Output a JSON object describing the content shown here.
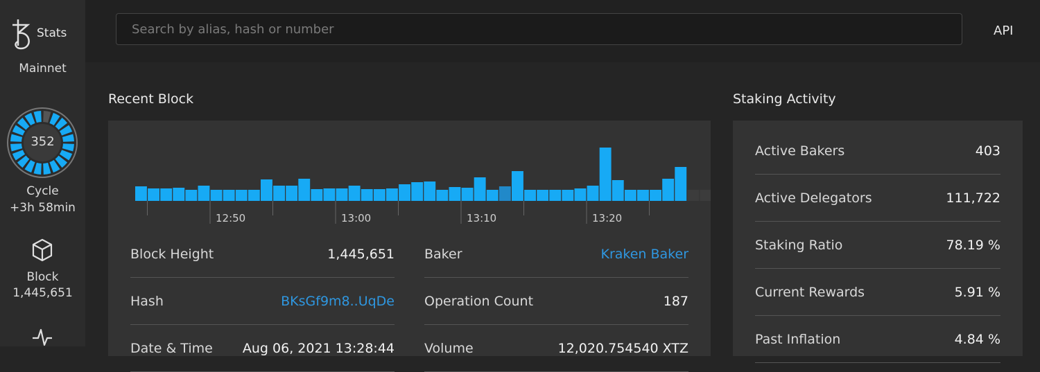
{
  "sidebar": {
    "brand": "Stats",
    "network": "Mainnet",
    "cycle_number": "352",
    "cycle_label": "Cycle",
    "cycle_remaining": "+3h 58min",
    "block_label": "Block",
    "block_height": "1,445,651"
  },
  "header": {
    "search_placeholder": "Search by alias, hash or number",
    "api_link": "API"
  },
  "recent_block": {
    "title": "Recent Block",
    "chart": {
      "type": "bar",
      "values": [
        21,
        18,
        18,
        19,
        16,
        22,
        16,
        16,
        16,
        16,
        31,
        22,
        22,
        32,
        17,
        18,
        18,
        22,
        17,
        17,
        18,
        24,
        27,
        28,
        16,
        20,
        19,
        34,
        16,
        21,
        43,
        16,
        16,
        16,
        16,
        18,
        22,
        77,
        30,
        16,
        16,
        16,
        32,
        49,
        16,
        16
      ],
      "colors": [
        "#17aaf5",
        "#17aaf5",
        "#17aaf5",
        "#17aaf5",
        "#17aaf5",
        "#17aaf5",
        "#17aaf5",
        "#17aaf5",
        "#17aaf5",
        "#17aaf5",
        "#17aaf5",
        "#17aaf5",
        "#17aaf5",
        "#17aaf5",
        "#17aaf5",
        "#17aaf5",
        "#17aaf5",
        "#17aaf5",
        "#17aaf5",
        "#17aaf5",
        "#17aaf5",
        "#17aaf5",
        "#17aaf5",
        "#17aaf5",
        "#17aaf5",
        "#17aaf5",
        "#17aaf5",
        "#17aaf5",
        "#17aaf5",
        "#2189c9",
        "#17aaf5",
        "#17aaf5",
        "#17aaf5",
        "#17aaf5",
        "#17aaf5",
        "#17aaf5",
        "#17aaf5",
        "#17aaf5",
        "#17aaf5",
        "#17aaf5",
        "#17aaf5",
        "#17aaf5",
        "#17aaf5",
        "#17aaf5",
        "#3c3c3c",
        "#3c3c3c"
      ],
      "xticks": [
        {
          "value": 6,
          "label": "12:50"
        },
        {
          "value": 16,
          "label": "13:00"
        },
        {
          "value": 26,
          "label": "13:10"
        },
        {
          "value": 36,
          "label": "13:20"
        }
      ],
      "minor_xticks": [
        1,
        11,
        21,
        31,
        41
      ]
    },
    "rows_left": [
      [
        "Block Height",
        "1,445,651"
      ],
      [
        "Hash",
        "BKsGf9m8..UqDe"
      ],
      [
        "Date & Time",
        "Aug 06, 2021 13:28:44"
      ]
    ],
    "rows_right": [
      [
        "Baker",
        "Kraken Baker"
      ],
      [
        "Operation Count",
        "187"
      ],
      [
        "Volume",
        "12,020.754540 XTZ"
      ]
    ]
  },
  "staking": {
    "title": "Staking Activity",
    "rows": [
      [
        "Active Bakers",
        "403"
      ],
      [
        "Active Delegators",
        "111,722"
      ],
      [
        "Staking Ratio",
        "78.19 %"
      ],
      [
        "Current Rewards",
        "5.91 %"
      ],
      [
        "Past Inflation",
        "4.84 %"
      ]
    ]
  }
}
